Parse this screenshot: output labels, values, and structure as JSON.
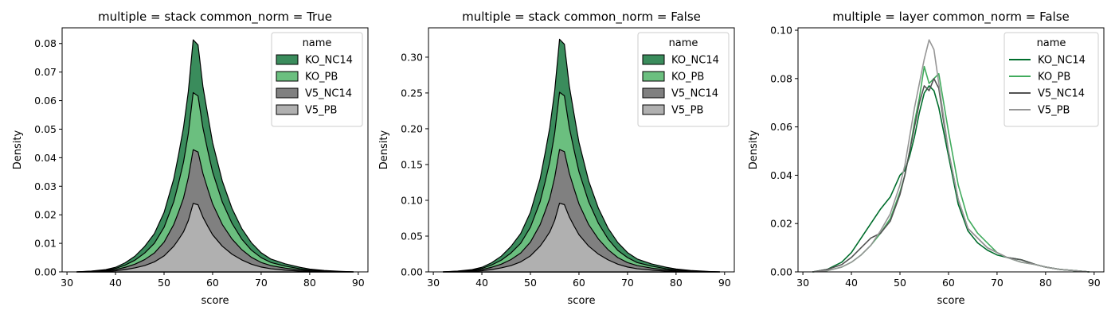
{
  "chart_data": [
    {
      "type": "area",
      "title": "multiple = stack common_norm = True",
      "xlabel": "score",
      "ylabel": "Density",
      "xlim": [
        29,
        92
      ],
      "ylim": [
        0,
        0.0855
      ],
      "x_ticks": [
        "30",
        "40",
        "50",
        "60",
        "70",
        "80",
        "90"
      ],
      "y_ticks": [
        "0.00",
        "0.01",
        "0.02",
        "0.03",
        "0.04",
        "0.05",
        "0.06",
        "0.07",
        "0.08"
      ],
      "legend": {
        "title": "name",
        "position": "upper right"
      },
      "x": [
        32,
        35,
        38,
        40,
        42,
        44,
        46,
        48,
        50,
        52,
        53,
        54,
        55,
        56,
        57,
        58,
        59,
        60,
        62,
        64,
        66,
        68,
        70,
        72,
        75,
        78,
        80,
        83,
        86,
        89
      ],
      "series": [
        {
          "name": "KO_NC14",
          "color": "#3a8c5c",
          "values": [
            0,
            0.0003,
            0.0008,
            0.0016,
            0.0032,
            0.0055,
            0.0089,
            0.0134,
            0.0208,
            0.0326,
            0.0412,
            0.0505,
            0.0632,
            0.0813,
            0.0795,
            0.065,
            0.055,
            0.0453,
            0.0318,
            0.0222,
            0.0152,
            0.0102,
            0.0067,
            0.0045,
            0.0028,
            0.0016,
            0.001,
            0.0005,
            0.0002,
            0
          ]
        },
        {
          "name": "KO_PB",
          "color": "#6bbf7f",
          "values": [
            0,
            0.0002,
            0.0006,
            0.0012,
            0.0024,
            0.0041,
            0.0066,
            0.01,
            0.0156,
            0.0246,
            0.0312,
            0.0384,
            0.0485,
            0.0628,
            0.0616,
            0.0505,
            0.0425,
            0.035,
            0.0245,
            0.017,
            0.0115,
            0.0076,
            0.005,
            0.0033,
            0.002,
            0.0011,
            0.0007,
            0.0004,
            0.0001,
            0
          ]
        },
        {
          "name": "V5_NC14",
          "color": "#808080",
          "values": [
            0,
            0.0001,
            0.0004,
            0.0008,
            0.0016,
            0.0027,
            0.0043,
            0.0066,
            0.0104,
            0.0166,
            0.021,
            0.0258,
            0.033,
            0.0428,
            0.042,
            0.0345,
            0.029,
            0.0238,
            0.0166,
            0.0115,
            0.0078,
            0.0051,
            0.0033,
            0.0022,
            0.0013,
            0.0007,
            0.0004,
            0.0002,
            0.0001,
            0
          ]
        },
        {
          "name": "V5_PB",
          "color": "#b0b0b0",
          "values": [
            0,
            0.0001,
            0.0002,
            0.0004,
            0.0008,
            0.0014,
            0.0022,
            0.0035,
            0.0056,
            0.009,
            0.0114,
            0.014,
            0.018,
            0.024,
            0.0235,
            0.0192,
            0.016,
            0.013,
            0.009,
            0.0062,
            0.0042,
            0.0027,
            0.0017,
            0.0011,
            0.0006,
            0.0003,
            0.0002,
            0.0001,
            0,
            0
          ]
        }
      ]
    },
    {
      "type": "area",
      "title": "multiple = stack common_norm = False",
      "xlabel": "score",
      "ylabel": "Density",
      "xlim": [
        29,
        92
      ],
      "ylim": [
        0,
        0.341
      ],
      "x_ticks": [
        "30",
        "40",
        "50",
        "60",
        "70",
        "80",
        "90"
      ],
      "y_ticks": [
        "0.00",
        "0.05",
        "0.10",
        "0.15",
        "0.20",
        "0.25",
        "0.30"
      ],
      "legend": {
        "title": "name",
        "position": "upper right"
      },
      "x": [
        32,
        35,
        38,
        40,
        42,
        44,
        46,
        48,
        50,
        52,
        53,
        54,
        55,
        56,
        57,
        58,
        59,
        60,
        62,
        64,
        66,
        68,
        70,
        72,
        75,
        78,
        80,
        83,
        86,
        89
      ],
      "series": [
        {
          "name": "KO_NC14",
          "color": "#3a8c5c",
          "values": [
            0,
            0.0012,
            0.0032,
            0.0064,
            0.0128,
            0.022,
            0.0356,
            0.0536,
            0.0832,
            0.13,
            0.165,
            0.202,
            0.253,
            0.325,
            0.318,
            0.26,
            0.22,
            0.181,
            0.127,
            0.089,
            0.061,
            0.041,
            0.027,
            0.018,
            0.011,
            0.0064,
            0.004,
            0.002,
            0.0008,
            0
          ]
        },
        {
          "name": "KO_PB",
          "color": "#6bbf7f",
          "values": [
            0,
            0.0008,
            0.0024,
            0.0048,
            0.0096,
            0.0164,
            0.0264,
            0.04,
            0.0624,
            0.098,
            0.125,
            0.154,
            0.194,
            0.251,
            0.246,
            0.202,
            0.17,
            0.14,
            0.098,
            0.068,
            0.046,
            0.03,
            0.02,
            0.013,
            0.008,
            0.0044,
            0.0028,
            0.0016,
            0.0004,
            0
          ]
        },
        {
          "name": "V5_NC14",
          "color": "#808080",
          "values": [
            0,
            0.0004,
            0.0016,
            0.0032,
            0.0064,
            0.0108,
            0.0172,
            0.0264,
            0.0416,
            0.066,
            0.084,
            0.103,
            0.132,
            0.171,
            0.168,
            0.138,
            0.116,
            0.095,
            0.066,
            0.046,
            0.031,
            0.02,
            0.013,
            0.0088,
            0.0052,
            0.0028,
            0.0016,
            0.0008,
            0.0004,
            0
          ]
        },
        {
          "name": "V5_PB",
          "color": "#b0b0b0",
          "values": [
            0,
            0.0004,
            0.0008,
            0.0016,
            0.0032,
            0.0056,
            0.0088,
            0.014,
            0.0224,
            0.036,
            0.0456,
            0.056,
            0.072,
            0.096,
            0.094,
            0.077,
            0.064,
            0.052,
            0.036,
            0.0248,
            0.0168,
            0.0108,
            0.0068,
            0.0044,
            0.0024,
            0.0012,
            0.0008,
            0.0004,
            0,
            0
          ]
        }
      ]
    },
    {
      "type": "line",
      "title": "multiple = layer common_norm = False",
      "xlabel": "score",
      "ylabel": "Density",
      "xlim": [
        29,
        92
      ],
      "ylim": [
        0,
        0.101
      ],
      "x_ticks": [
        "30",
        "40",
        "50",
        "60",
        "70",
        "80",
        "90"
      ],
      "y_ticks": [
        "0.00",
        "0.02",
        "0.04",
        "0.06",
        "0.08",
        "0.10"
      ],
      "legend": {
        "title": "name",
        "position": "upper right"
      },
      "x": [
        32,
        35,
        38,
        40,
        42,
        44,
        46,
        48,
        50,
        51,
        52,
        53,
        54,
        55,
        56,
        57,
        58,
        59,
        60,
        62,
        64,
        66,
        68,
        70,
        72,
        75,
        78,
        80,
        83,
        86,
        89
      ],
      "series": [
        {
          "name": "KO_NC14",
          "color": "#006d2c",
          "values": [
            0,
            0.001,
            0.004,
            0.008,
            0.014,
            0.02,
            0.026,
            0.031,
            0.04,
            0.042,
            0.048,
            0.056,
            0.066,
            0.074,
            0.077,
            0.075,
            0.068,
            0.058,
            0.048,
            0.028,
            0.017,
            0.012,
            0.009,
            0.007,
            0.006,
            0.005,
            0.003,
            0.002,
            0.001,
            0.0005,
            0
          ]
        },
        {
          "name": "KO_PB",
          "color": "#41ab5d",
          "values": [
            0,
            0.0005,
            0.002,
            0.004,
            0.007,
            0.011,
            0.016,
            0.022,
            0.033,
            0.04,
            0.05,
            0.062,
            0.072,
            0.085,
            0.078,
            0.08,
            0.082,
            0.07,
            0.058,
            0.036,
            0.022,
            0.016,
            0.012,
            0.008,
            0.006,
            0.004,
            0.003,
            0.002,
            0.001,
            0.0005,
            0
          ]
        },
        {
          "name": "V5_NC14",
          "color": "#525252",
          "values": [
            0,
            0.001,
            0.003,
            0.006,
            0.01,
            0.014,
            0.016,
            0.021,
            0.032,
            0.04,
            0.05,
            0.06,
            0.07,
            0.077,
            0.075,
            0.08,
            0.076,
            0.062,
            0.05,
            0.03,
            0.018,
            0.014,
            0.01,
            0.008,
            0.006,
            0.005,
            0.003,
            0.002,
            0.001,
            0.0005,
            0
          ]
        },
        {
          "name": "V5_PB",
          "color": "#969696",
          "values": [
            0,
            0.0005,
            0.002,
            0.004,
            0.007,
            0.011,
            0.017,
            0.024,
            0.036,
            0.044,
            0.056,
            0.068,
            0.078,
            0.088,
            0.096,
            0.092,
            0.078,
            0.064,
            0.05,
            0.03,
            0.018,
            0.014,
            0.01,
            0.008,
            0.006,
            0.004,
            0.003,
            0.002,
            0.001,
            0.0005,
            0
          ]
        }
      ]
    }
  ]
}
